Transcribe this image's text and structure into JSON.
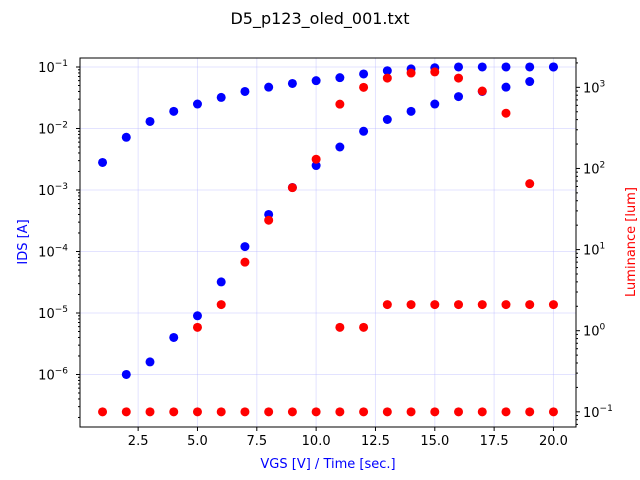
{
  "chart_data": {
    "type": "scatter",
    "title": "D5_p123_oled_001.txt",
    "xlabel": "VGS [V] / Time [sec.]",
    "ylabel_left": "IDS [A]",
    "ylabel_right": "Luminance [lum]",
    "xlim": [
      0.05,
      20.95
    ],
    "x_ticks": [
      2.5,
      5.0,
      7.5,
      10.0,
      12.5,
      15.0,
      17.5,
      20.0
    ],
    "x_tick_labels": [
      "2.5",
      "5.0",
      "7.5",
      "10.0",
      "12.5",
      "15.0",
      "17.5",
      "20.0"
    ],
    "y_left_scale": "log",
    "y_left_lim": [
      1.4e-07,
      0.14
    ],
    "y_left_ticks": [
      {
        "value": 1e-06,
        "mantissa": "10",
        "exponent": "−6"
      },
      {
        "value": 1e-05,
        "mantissa": "10",
        "exponent": "−5"
      },
      {
        "value": 0.0001,
        "mantissa": "10",
        "exponent": "−4"
      },
      {
        "value": 0.001,
        "mantissa": "10",
        "exponent": "−3"
      },
      {
        "value": 0.01,
        "mantissa": "10",
        "exponent": "−2"
      },
      {
        "value": 0.1,
        "mantissa": "10",
        "exponent": "−1"
      }
    ],
    "y_right_scale": "log",
    "y_right_lim": [
      0.065,
      2300
    ],
    "y_right_ticks": [
      {
        "value": 0.1,
        "mantissa": "10",
        "exponent": "−1"
      },
      {
        "value": 1,
        "mantissa": "10",
        "exponent": "0"
      },
      {
        "value": 10,
        "mantissa": "10",
        "exponent": "1"
      },
      {
        "value": 100,
        "mantissa": "10",
        "exponent": "2"
      },
      {
        "value": 1000,
        "mantissa": "10",
        "exponent": "3"
      }
    ],
    "grid": true,
    "series": [
      {
        "axis": "left",
        "color": "#0000ff",
        "x": [
          1,
          2,
          3,
          4,
          5,
          6,
          7,
          8,
          9,
          10,
          11,
          12,
          13,
          14,
          15,
          16,
          17,
          18,
          19,
          20,
          2,
          3,
          4,
          5,
          6,
          7,
          8,
          9,
          10,
          11,
          12,
          13,
          14,
          15,
          16,
          17,
          18,
          19,
          20
        ],
        "y": [
          0.0028,
          0.0072,
          0.013,
          0.019,
          0.025,
          0.032,
          0.04,
          0.047,
          0.054,
          0.06,
          0.067,
          0.077,
          0.087,
          0.093,
          0.097,
          0.1,
          0.1,
          0.1,
          0.1,
          0.1,
          1e-06,
          1.6e-06,
          4e-06,
          9e-06,
          3.2e-05,
          0.00012,
          0.0004,
          0.0011,
          0.0025,
          0.005,
          0.009,
          0.014,
          0.019,
          0.025,
          0.033,
          0.04,
          0.047,
          0.058,
          0.1
        ]
      },
      {
        "axis": "right",
        "color": "#ff0000",
        "x": [
          1,
          2,
          3,
          4,
          5,
          6,
          7,
          8,
          9,
          10,
          11,
          12,
          13,
          14,
          15,
          16,
          17,
          18,
          19,
          20,
          5,
          6,
          7,
          8,
          9,
          10,
          11,
          12,
          13,
          14,
          15,
          16,
          17,
          18,
          19,
          11,
          12,
          13,
          14,
          15,
          16,
          17,
          18,
          19,
          20
        ],
        "y": [
          0.1,
          0.1,
          0.1,
          0.1,
          0.1,
          0.1,
          0.1,
          0.1,
          0.1,
          0.1,
          0.1,
          0.1,
          0.1,
          0.1,
          0.1,
          0.1,
          0.1,
          0.1,
          0.1,
          0.1,
          1.1,
          2.1,
          7,
          23,
          58,
          130,
          620,
          1000,
          1300,
          1500,
          1550,
          1300,
          900,
          480,
          65,
          1.1,
          1.1,
          2.1,
          2.1,
          2.1,
          2.1,
          2.1,
          2.1,
          2.1,
          2.1
        ]
      }
    ]
  }
}
